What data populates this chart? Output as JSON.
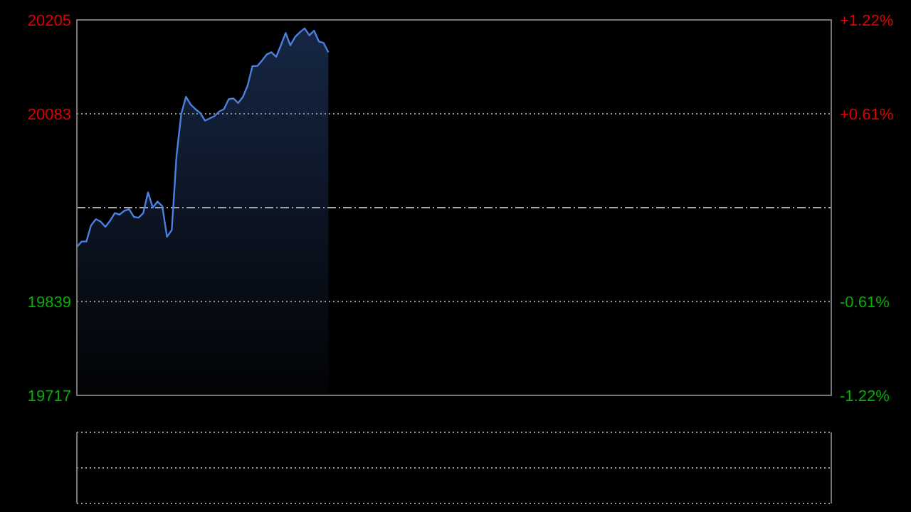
{
  "chart_data": {
    "type": "area",
    "categories": [
      null,
      null,
      null,
      null,
      null,
      null,
      null,
      null,
      null,
      null,
      null,
      null,
      null,
      null,
      null,
      null,
      null,
      null,
      null,
      null,
      null,
      null,
      null,
      null,
      null,
      null,
      null,
      null,
      null,
      null,
      null,
      null,
      null,
      null,
      null,
      null,
      null,
      null,
      null,
      null,
      null,
      null,
      null,
      null,
      null,
      null,
      null,
      null,
      null,
      null,
      null,
      null,
      null,
      null,
      null,
      null,
      null,
      null,
      null,
      null,
      null,
      null,
      null,
      null,
      null,
      null,
      null,
      null,
      null,
      null,
      null,
      null,
      null,
      null,
      null,
      null,
      null,
      null,
      null,
      null,
      null,
      null,
      null,
      null,
      null,
      null,
      null,
      null,
      null,
      null,
      null,
      null,
      null,
      null,
      null,
      null,
      null,
      null,
      null,
      null,
      null,
      null,
      null,
      null,
      null,
      null,
      null,
      null,
      null,
      null,
      null,
      null,
      null,
      null,
      null,
      null,
      null,
      null,
      null,
      null,
      null,
      null,
      null,
      null,
      null,
      null,
      null,
      null,
      null,
      null,
      null,
      null,
      null,
      null,
      null,
      null,
      null,
      null,
      null,
      null,
      null,
      null,
      null,
      null,
      null,
      null,
      null,
      null,
      null,
      null,
      null,
      null,
      null,
      null,
      null,
      null,
      null,
      null,
      null,
      null
    ],
    "series": [
      {
        "color": "#4a80e0",
        "values": [
          19910,
          19917,
          19917,
          19938,
          19946,
          19943,
          19936,
          19944,
          19954,
          19952,
          19957,
          19959,
          19949,
          19948,
          19954,
          19981,
          19961,
          19969,
          19963,
          19923,
          19932,
          20028,
          20083,
          20105,
          20095,
          20089,
          20084,
          20074,
          20077,
          20080,
          20086,
          20089,
          20102,
          20103,
          20097,
          20105,
          20120,
          20145,
          20145,
          20152,
          20160,
          20163,
          20157,
          20172,
          20188,
          20172,
          20183,
          20189,
          20194,
          20185,
          20191,
          20177,
          20175,
          20163,
          null,
          null,
          null,
          null,
          null,
          null,
          null,
          null,
          null,
          null,
          null,
          null,
          null,
          null,
          null,
          null,
          null,
          null,
          null,
          null,
          null,
          null,
          null,
          null,
          null,
          null,
          null,
          null,
          null,
          null,
          null,
          null,
          null,
          null,
          null,
          null,
          null,
          null,
          null,
          null,
          null,
          null,
          null,
          null,
          null,
          null,
          null,
          null,
          null,
          null,
          null,
          null,
          null,
          null,
          null,
          null,
          null,
          null,
          null,
          null,
          null,
          null,
          null,
          null,
          null,
          null,
          null,
          null,
          null,
          null,
          null,
          null,
          null,
          null,
          null,
          null,
          null,
          null,
          null,
          null,
          null,
          null,
          null,
          null,
          null,
          null,
          null,
          null,
          null,
          null,
          null,
          null,
          null,
          null,
          null,
          null,
          null,
          null,
          null,
          null,
          null,
          null,
          null,
          null,
          null,
          null
        ]
      }
    ],
    "ylim": [
      19717,
      20205
    ],
    "yticks": [
      20205,
      20083,
      19839,
      19717
    ],
    "y2lim": [
      -1.22,
      1.22
    ],
    "y2ticks": [
      {
        "value": 1.22,
        "label": "+1.22%"
      },
      {
        "value": 0.61,
        "label": "+0.61%"
      },
      {
        "value": -0.61,
        "label": "-0.61%"
      },
      {
        "value": -1.22,
        "label": "-1.22%"
      }
    ],
    "ref_lines": [
      {
        "axis": "y",
        "value": 19961,
        "line_style": "dashdot",
        "color": "#aaaaaa"
      }
    ],
    "grid": "y"
  }
}
